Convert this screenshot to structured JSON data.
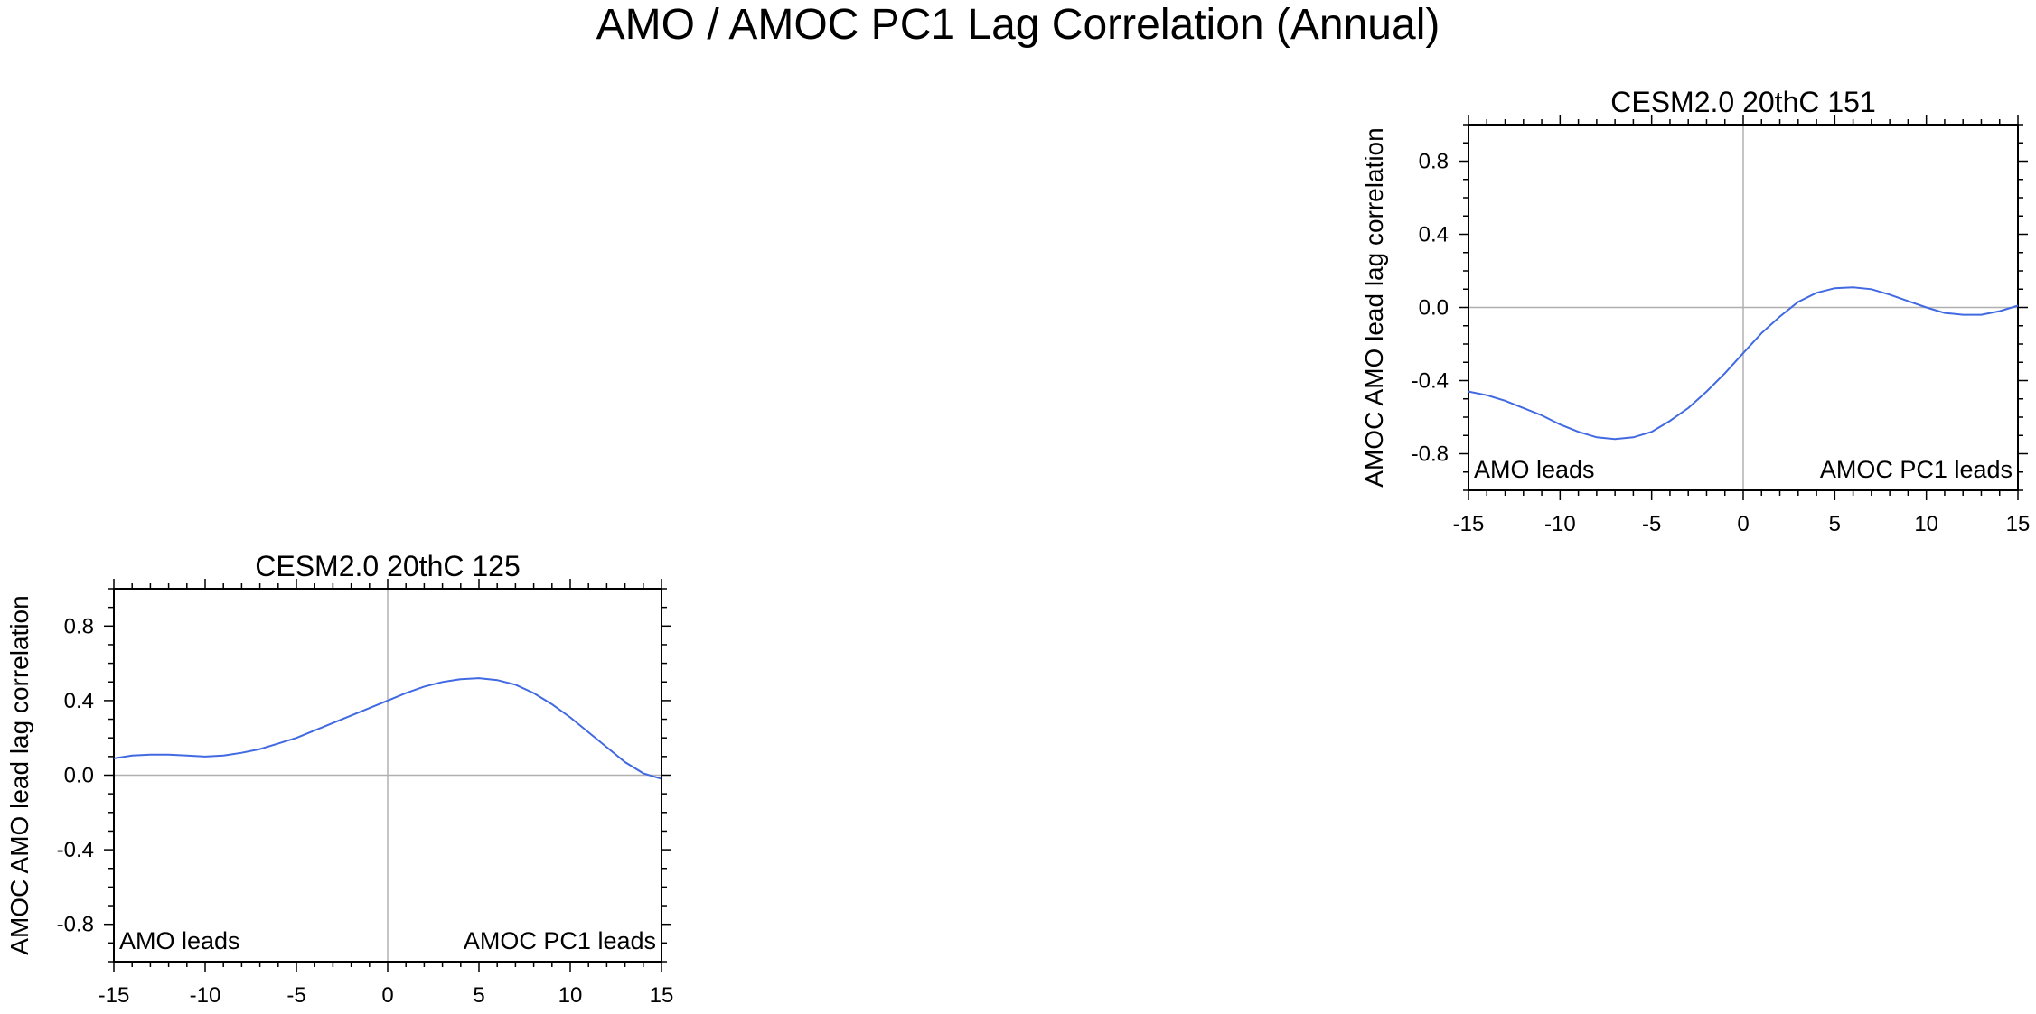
{
  "title": "AMO / AMOC PC1 Lag Correlation (Annual)",
  "colors": {
    "line": "#4169e1",
    "axis": "#000000",
    "zero_lines": "#b0b0b0"
  },
  "chart_data": [
    {
      "type": "line",
      "title": "CESM2.0 20thC 151",
      "ylabel": "AMOC AMO lead lag correlation",
      "xlim": [
        -15,
        15
      ],
      "ylim": [
        -1.0,
        1.0
      ],
      "xticks": [
        "-15",
        "-10",
        "-5",
        "0",
        "5",
        "10",
        "15"
      ],
      "yticks": [
        "0.8",
        "0.4",
        "0.0",
        "-0.4",
        "-0.8"
      ],
      "annotations": {
        "left": "AMO leads",
        "right": "AMOC PC1 leads"
      },
      "grid": false,
      "x": [
        -15,
        -14,
        -13,
        -12,
        -11,
        -10,
        -9,
        -8,
        -7,
        -6,
        -5,
        -4,
        -3,
        -2,
        -1,
        0,
        1,
        2,
        3,
        4,
        5,
        6,
        7,
        8,
        9,
        10,
        11,
        12,
        13,
        14,
        15
      ],
      "series": [
        {
          "values": [
            -0.46,
            -0.48,
            -0.51,
            -0.55,
            -0.59,
            -0.64,
            -0.68,
            -0.71,
            -0.72,
            -0.71,
            -0.68,
            -0.62,
            -0.55,
            -0.46,
            -0.36,
            -0.25,
            -0.14,
            -0.05,
            0.03,
            0.08,
            0.105,
            0.11,
            0.1,
            0.07,
            0.035,
            0.0,
            -0.03,
            -0.04,
            -0.04,
            -0.02,
            0.01
          ]
        }
      ]
    },
    {
      "type": "line",
      "title": "CESM2.0 20thC 125",
      "ylabel": "AMOC AMO lead lag correlation",
      "xlim": [
        -15,
        15
      ],
      "ylim": [
        -1.0,
        1.0
      ],
      "xticks": [
        "-15",
        "-10",
        "-5",
        "0",
        "5",
        "10",
        "15"
      ],
      "yticks": [
        "0.8",
        "0.4",
        "0.0",
        "-0.4",
        "-0.8"
      ],
      "annotations": {
        "left": "AMO leads",
        "right": "AMOC PC1 leads"
      },
      "grid": false,
      "x": [
        -15,
        -14,
        -13,
        -12,
        -11,
        -10,
        -9,
        -8,
        -7,
        -6,
        -5,
        -4,
        -3,
        -2,
        -1,
        0,
        1,
        2,
        3,
        4,
        5,
        6,
        7,
        8,
        9,
        10,
        11,
        12,
        13,
        14,
        15
      ],
      "series": [
        {
          "values": [
            0.09,
            0.105,
            0.11,
            0.11,
            0.105,
            0.1,
            0.105,
            0.12,
            0.14,
            0.17,
            0.2,
            0.24,
            0.28,
            0.32,
            0.36,
            0.4,
            0.44,
            0.475,
            0.5,
            0.515,
            0.52,
            0.51,
            0.485,
            0.44,
            0.38,
            0.31,
            0.23,
            0.15,
            0.07,
            0.01,
            -0.02
          ]
        }
      ]
    }
  ]
}
